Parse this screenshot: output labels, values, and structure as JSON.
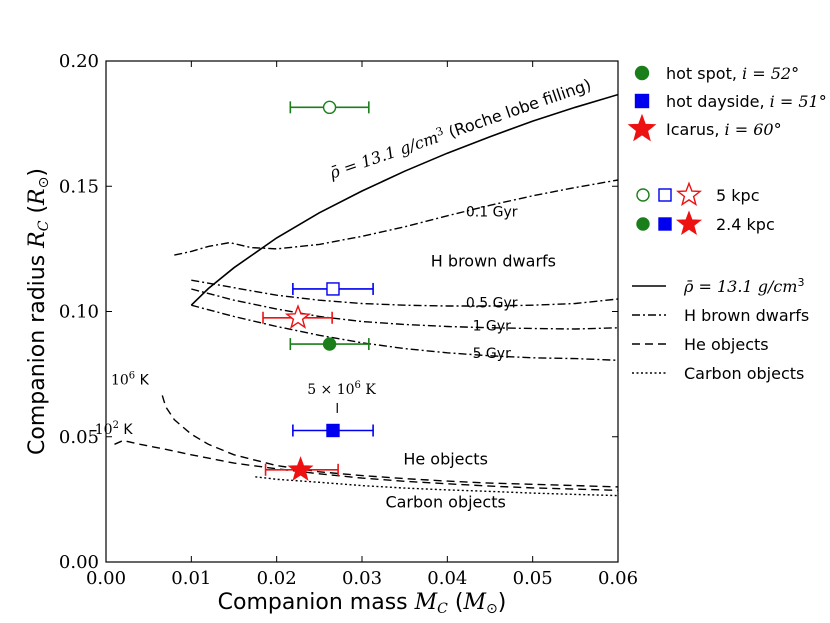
{
  "chart_data": {
    "type": "scatter",
    "xlabel": "Companion mass M_C (M_⊙)",
    "ylabel": "Companion radius R_C (R_⊙)",
    "xlabel_text": "Companion mass",
    "xlabel_sym": "M",
    "xlabel_sub": "C",
    "xlabel_unit_open": " (",
    "xlabel_unit": "M",
    "xlabel_unit_sub": "⊙",
    "xlabel_close": ")",
    "ylabel_text": "Companion radius",
    "ylabel_sym": "R",
    "ylabel_sub": "C",
    "ylabel_unit_open": " (",
    "ylabel_unit": "R",
    "ylabel_unit_sub": "⊙",
    "ylabel_close": ")",
    "xlim": [
      0,
      0.06
    ],
    "ylim": [
      0,
      0.2
    ],
    "xticks": [
      "0.00",
      "0.01",
      "0.02",
      "0.03",
      "0.04",
      "0.05",
      "0.06"
    ],
    "yticks": [
      "0.00",
      "0.05",
      "0.10",
      "0.15",
      "0.20"
    ],
    "points": [
      {
        "name": "hot spot 5 kpc",
        "x": 0.0262,
        "y": 0.1815,
        "xerr": [
          0.0216,
          0.0308
        ],
        "color": "#1a7f1a",
        "marker": "circle",
        "filled": false
      },
      {
        "name": "hot spot 2.4 kpc",
        "x": 0.0262,
        "y": 0.087,
        "xerr": [
          0.0216,
          0.0308
        ],
        "color": "#1a7f1a",
        "marker": "circle",
        "filled": true
      },
      {
        "name": "hot dayside 5 kpc",
        "x": 0.0266,
        "y": 0.109,
        "xerr": [
          0.0219,
          0.0313
        ],
        "color": "#0000ee",
        "marker": "square",
        "filled": false
      },
      {
        "name": "hot dayside 2.4 kpc",
        "x": 0.0266,
        "y": 0.0525,
        "xerr": [
          0.0219,
          0.0313
        ],
        "color": "#0000ee",
        "marker": "square",
        "filled": true
      },
      {
        "name": "Icarus 5 kpc",
        "x": 0.0225,
        "y": 0.0975,
        "xerr": [
          0.0184,
          0.0265
        ],
        "color": "#ee1111",
        "marker": "star",
        "filled": false
      },
      {
        "name": "Icarus 2.4 kpc",
        "x": 0.0228,
        "y": 0.0368,
        "xerr": [
          0.0187,
          0.0272
        ],
        "color": "#ee1111",
        "marker": "star",
        "filled": true
      }
    ],
    "curves": [
      {
        "name": "rho-bar 13.1 g/cm3",
        "style": "solid",
        "x": [
          0.01,
          0.012,
          0.015,
          0.02,
          0.025,
          0.03,
          0.035,
          0.04,
          0.045,
          0.05,
          0.055,
          0.06
        ],
        "y": [
          0.1025,
          0.1092,
          0.1175,
          0.1294,
          0.1394,
          0.1481,
          0.156,
          0.1632,
          0.1698,
          0.176,
          0.1815,
          0.1866
        ]
      },
      {
        "name": "0.1 Gyr",
        "style": "dashdot",
        "x": [
          0.008,
          0.01,
          0.012,
          0.0145,
          0.017,
          0.02,
          0.025,
          0.03,
          0.035,
          0.04,
          0.045,
          0.05,
          0.055,
          0.06
        ],
        "y": [
          0.1225,
          0.124,
          0.126,
          0.1275,
          0.1255,
          0.125,
          0.1268,
          0.13,
          0.1338,
          0.1382,
          0.1424,
          0.1462,
          0.1495,
          0.1525
        ]
      },
      {
        "name": "0.5 Gyr",
        "style": "dashdot",
        "x": [
          0.01,
          0.015,
          0.02,
          0.025,
          0.03,
          0.035,
          0.04,
          0.045,
          0.05,
          0.055,
          0.06
        ],
        "y": [
          0.1125,
          0.1095,
          0.1065,
          0.1045,
          0.1032,
          0.1025,
          0.1022,
          0.1022,
          0.1025,
          0.1032,
          0.105
        ]
      },
      {
        "name": "1 Gyr",
        "style": "dashdot",
        "x": [
          0.01,
          0.015,
          0.02,
          0.025,
          0.03,
          0.035,
          0.04,
          0.045,
          0.05,
          0.055,
          0.06
        ],
        "y": [
          0.109,
          0.1045,
          0.101,
          0.098,
          0.096,
          0.0948,
          0.094,
          0.0935,
          0.0932,
          0.093,
          0.0935
        ]
      },
      {
        "name": "5 Gyr",
        "style": "dashdot",
        "x": [
          0.01,
          0.015,
          0.02,
          0.025,
          0.03,
          0.035,
          0.04,
          0.045,
          0.05,
          0.055,
          0.06
        ],
        "y": [
          0.1025,
          0.098,
          0.094,
          0.0905,
          0.0875,
          0.0852,
          0.0835,
          0.0823,
          0.0815,
          0.0812,
          0.0805
        ]
      },
      {
        "name": "He 1e6 K",
        "style": "dashed",
        "x": [
          0.0066,
          0.007,
          0.008,
          0.01,
          0.012,
          0.015,
          0.02,
          0.025,
          0.03,
          0.035,
          0.04,
          0.045,
          0.05,
          0.055,
          0.06
        ],
        "y": [
          0.0665,
          0.062,
          0.0568,
          0.051,
          0.047,
          0.0428,
          0.0385,
          0.036,
          0.0345,
          0.0333,
          0.0323,
          0.0315,
          0.031,
          0.0305,
          0.03
        ]
      },
      {
        "name": "He 1e2 K",
        "style": "dashed",
        "x": [
          0.001,
          0.002,
          0.004,
          0.007,
          0.01,
          0.015,
          0.02,
          0.025,
          0.03,
          0.035,
          0.04,
          0.045,
          0.05,
          0.055,
          0.06
        ],
        "y": [
          0.047,
          0.0485,
          0.047,
          0.045,
          0.0428,
          0.0395,
          0.0372,
          0.0352,
          0.0335,
          0.0322,
          0.0312,
          0.0303,
          0.0296,
          0.0291,
          0.0286
        ]
      },
      {
        "name": "Carbon",
        "style": "dotted",
        "x": [
          0.0175,
          0.02,
          0.025,
          0.03,
          0.035,
          0.04,
          0.045,
          0.05,
          0.055,
          0.06
        ],
        "y": [
          0.034,
          0.033,
          0.0318,
          0.0305,
          0.0295,
          0.0288,
          0.0282,
          0.0275,
          0.027,
          0.0265
        ]
      }
    ],
    "annotations": {
      "rho": {
        "text": "ρ̄ = 13.1 g/cm",
        "sup": "3",
        "rest": " (Roche lobe filling)",
        "x": 0.0265,
        "y": 0.153,
        "angle": -19
      },
      "gyr01": {
        "text": "0.1 Gyr",
        "x": 0.0452,
        "y": 0.138
      },
      "hbd": {
        "text": "H brown dwarfs",
        "x": 0.0454,
        "y": 0.118
      },
      "gyr05": {
        "text": "0.5 Gyr",
        "x": 0.0452,
        "y": 0.1016
      },
      "gyr1": {
        "text": "1 Gyr",
        "x": 0.0452,
        "y": 0.0925
      },
      "gyr5": {
        "text": "5 Gyr",
        "x": 0.0452,
        "y": 0.0815
      },
      "t6": {
        "text": "10",
        "sup": "6",
        "unit": " K",
        "x": 0.0028,
        "y": 0.0708
      },
      "t2": {
        "text": "10",
        "sup": "2",
        "unit": " K",
        "x": 0.0009,
        "y": 0.051
      },
      "t5e6": {
        "text": "5 × 10",
        "sup": "6",
        "unit": " K",
        "x": 0.0276,
        "y": 0.067
      },
      "he": {
        "text": "He objects",
        "x": 0.0398,
        "y": 0.039
      },
      "carbon": {
        "text": "Carbon objects",
        "x": 0.0398,
        "y": 0.0218
      }
    },
    "legend_markers": [
      {
        "label": "hot spot, ",
        "math": "i = 52°",
        "color": "#1a7f1a",
        "marker": "circle"
      },
      {
        "label": "hot dayside, ",
        "math": "i = 51°",
        "color": "#0000ee",
        "marker": "square"
      },
      {
        "label": "Icarus, ",
        "math": "i = 60°",
        "color": "#ee1111",
        "marker": "star"
      }
    ],
    "legend_distance": [
      {
        "label": "5 kpc",
        "filled": false
      },
      {
        "label": "2.4 kpc",
        "filled": true
      }
    ],
    "legend_lines": [
      {
        "label": "ρ̄ = 13.1 g/cm",
        "sup": "3",
        "style": "solid"
      },
      {
        "label": "H brown dwarfs",
        "style": "dashdot"
      },
      {
        "label": "He objects",
        "style": "dashed"
      },
      {
        "label": "Carbon objects",
        "style": "dotted"
      }
    ],
    "legend_position": "right"
  }
}
